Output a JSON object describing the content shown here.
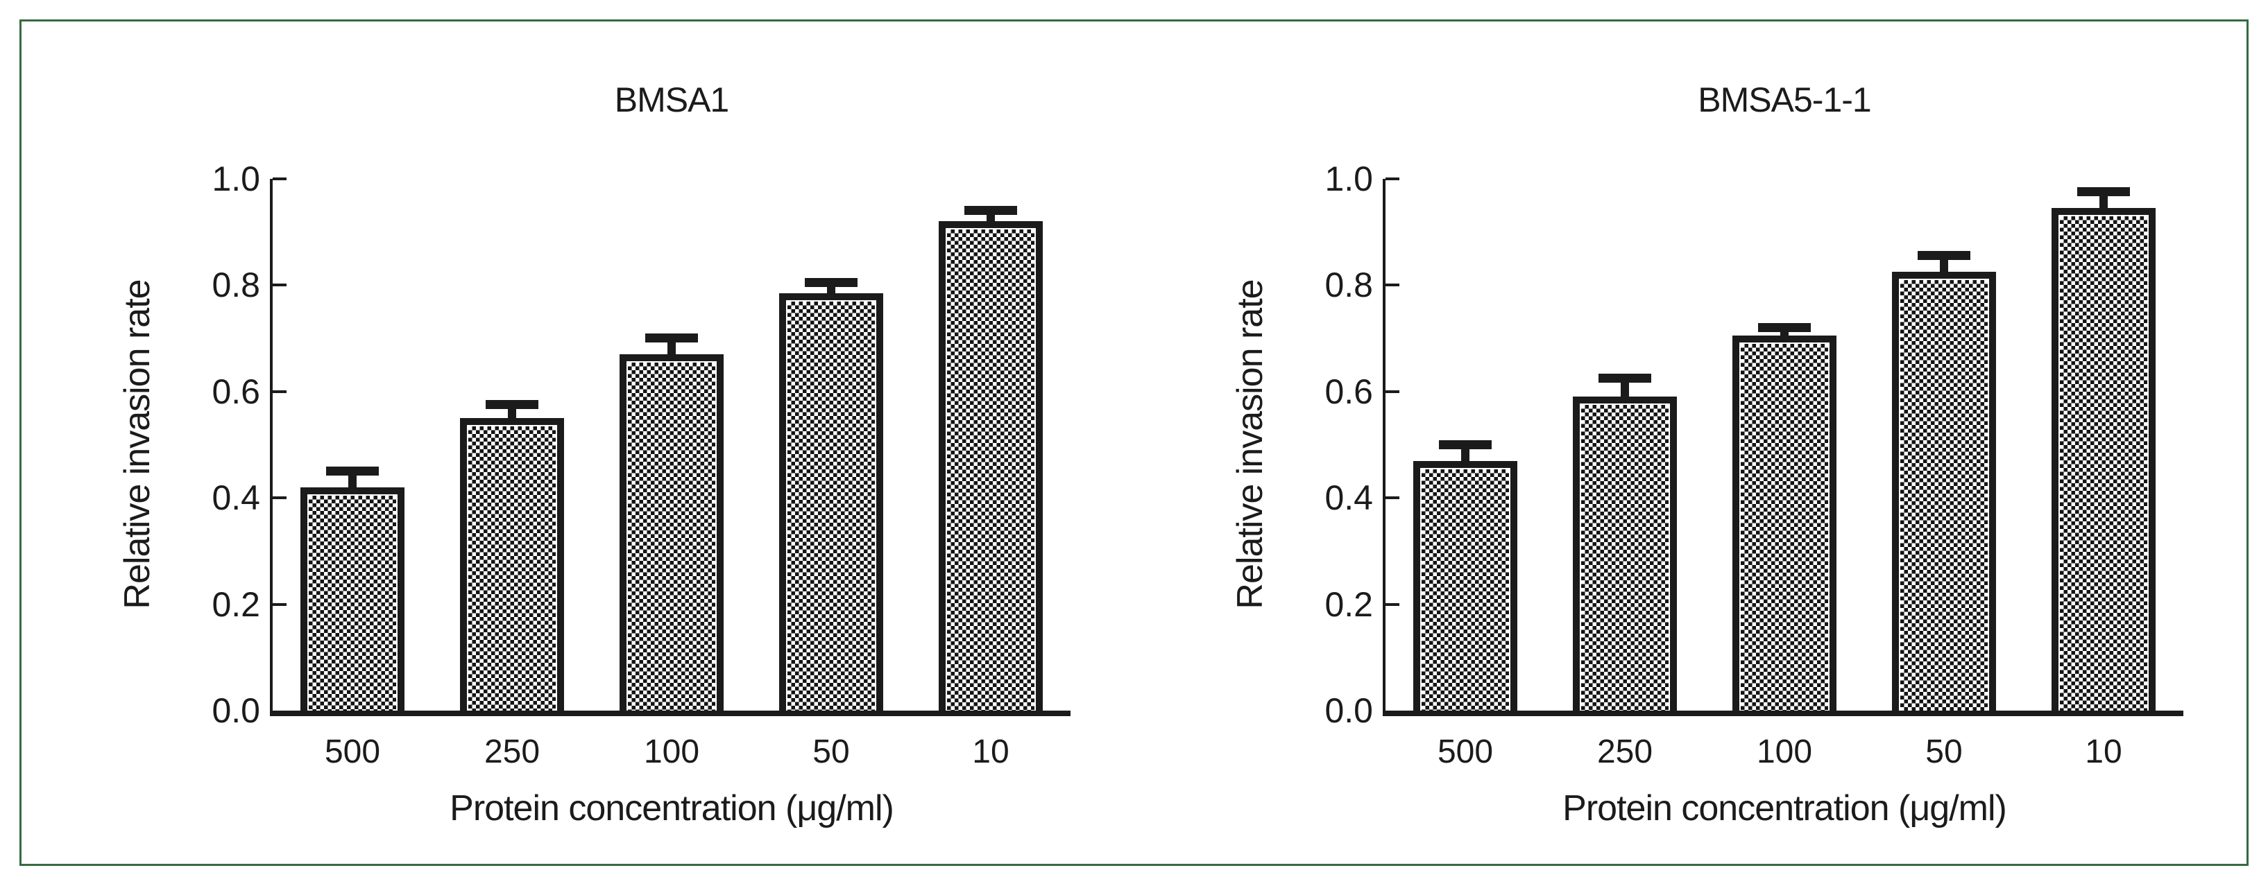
{
  "figure": {
    "border_color": "#356b3f",
    "ink_color": "#1b1b1b",
    "background": "#ffffff"
  },
  "chart_data": [
    {
      "type": "bar",
      "title": "BMSA1",
      "xlabel": "Protein concentration (μg/ml)",
      "ylabel": "Relative invasion rate",
      "categories": [
        "500",
        "250",
        "100",
        "50",
        "10"
      ],
      "values": [
        0.42,
        0.55,
        0.67,
        0.785,
        0.92
      ],
      "errors_upper": [
        0.03,
        0.025,
        0.03,
        0.02,
        0.02
      ],
      "ylim": [
        0.0,
        1.0
      ],
      "yticks": [
        "0.0",
        "0.2",
        "0.4",
        "0.6",
        "0.8",
        "1.0"
      ],
      "grid": false,
      "legend": null,
      "bar_pattern": "black-white-checkerboard"
    },
    {
      "type": "bar",
      "title": "BMSA5-1-1",
      "xlabel": "Protein concentration (μg/ml)",
      "ylabel": "Relative invasion rate",
      "categories": [
        "500",
        "250",
        "100",
        "50",
        "10"
      ],
      "values": [
        0.47,
        0.59,
        0.705,
        0.825,
        0.945
      ],
      "errors_upper": [
        0.03,
        0.035,
        0.015,
        0.03,
        0.03
      ],
      "ylim": [
        0.0,
        1.0
      ],
      "yticks": [
        "0.0",
        "0.2",
        "0.4",
        "0.6",
        "0.8",
        "1.0"
      ],
      "grid": false,
      "legend": null,
      "bar_pattern": "black-white-checkerboard"
    }
  ]
}
